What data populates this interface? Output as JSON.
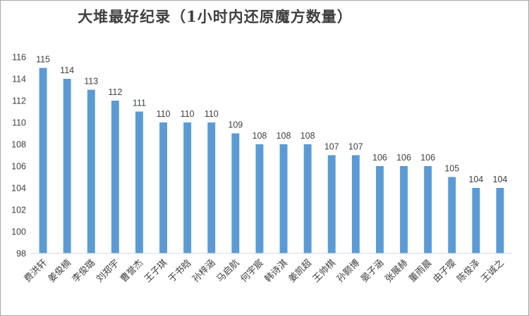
{
  "chart_data": {
    "type": "bar",
    "title": "大堆最好纪录（1小时内还原魔方数量）",
    "categories": [
      "费洪轩",
      "姜俊楠",
      "李俊璐",
      "刘郑宇",
      "曹誉杰",
      "王子琪",
      "于书晗",
      "孙梓涵",
      "马启航",
      "何宇宸",
      "韩诗淇",
      "姜凯超",
      "王帅棋",
      "孙颢博",
      "晏子涵",
      "张展赫",
      "董雨晨",
      "由子璎",
      "陈俊泽",
      "王诚之"
    ],
    "values": [
      115,
      114,
      113,
      112,
      111,
      110,
      110,
      110,
      109,
      108,
      108,
      108,
      107,
      107,
      106,
      106,
      106,
      105,
      104,
      104
    ],
    "ylim": [
      98,
      116
    ],
    "yticks": [
      98,
      100,
      102,
      104,
      106,
      108,
      110,
      112,
      114,
      116
    ],
    "ytick_labels": [
      "98",
      "100",
      "102",
      "104",
      "106",
      "108",
      "110",
      "112",
      "114",
      "116"
    ],
    "grid": false,
    "bar_color": "#5b9bd5",
    "xlabel": "",
    "ylabel": ""
  }
}
